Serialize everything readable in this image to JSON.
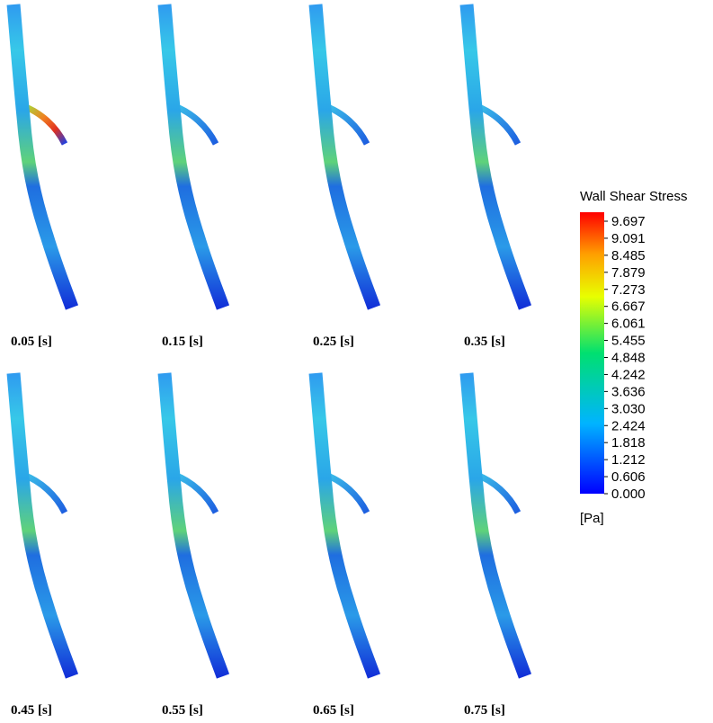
{
  "panels": [
    {
      "label": "0.05 [s]"
    },
    {
      "label": "0.15 [s]"
    },
    {
      "label": "0.25 [s]"
    },
    {
      "label": "0.35 [s]"
    },
    {
      "label": "0.45 [s]"
    },
    {
      "label": "0.55 [s]"
    },
    {
      "label": "0.65 [s]"
    },
    {
      "label": "0.75 [s]"
    }
  ],
  "colorbar": {
    "title": "Wall Shear Stress",
    "unit": "[Pa]",
    "ticks": [
      "9.697",
      "9.091",
      "8.485",
      "7.879",
      "7.273",
      "6.667",
      "6.061",
      "5.455",
      "4.848",
      "4.242",
      "3.636",
      "3.030",
      "2.424",
      "1.818",
      "1.212",
      "0.606",
      "0.000"
    ]
  }
}
